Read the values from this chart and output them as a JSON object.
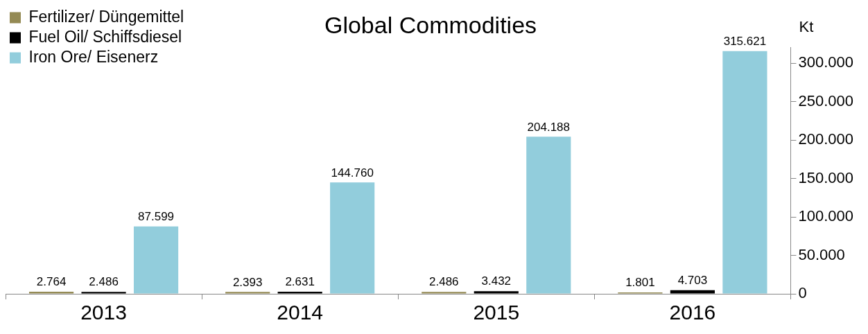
{
  "chart_data": {
    "type": "bar",
    "title": "Global Commodities",
    "ylabel": "Kt",
    "categories": [
      "2013",
      "2014",
      "2015",
      "2016"
    ],
    "series": [
      {
        "name": "Fertilizer/ Düngemittel",
        "color": "#948a54",
        "values": [
          2764,
          2393,
          2486,
          1801
        ],
        "value_labels": [
          "2.764",
          "2.393",
          "2.486",
          "1.801"
        ]
      },
      {
        "name": "Fuel Oil/ Schiffsdiesel",
        "color": "#000000",
        "values": [
          2486,
          2631,
          3432,
          4703
        ],
        "value_labels": [
          "2.486",
          "2.631",
          "3.432",
          "4.703"
        ]
      },
      {
        "name": "Iron Ore/ Eisenerz",
        "color": "#92cddc",
        "values": [
          87599,
          144760,
          204188,
          315621
        ],
        "value_labels": [
          "87.599",
          "144.760",
          "204.188",
          "315.621"
        ]
      }
    ],
    "ylim": [
      0,
      320000
    ],
    "yticks": [
      0,
      {
        "value": 50000,
        "label": "50.000"
      },
      {
        "value": 100000,
        "label": "100.000"
      },
      {
        "value": 150000,
        "label": "150.000"
      },
      {
        "value": 200000,
        "label": "200.000"
      },
      {
        "value": 250000,
        "label": "250.000"
      },
      {
        "value": 300000,
        "label": "300.000"
      }
    ],
    "grid": false,
    "legend": "top left"
  }
}
